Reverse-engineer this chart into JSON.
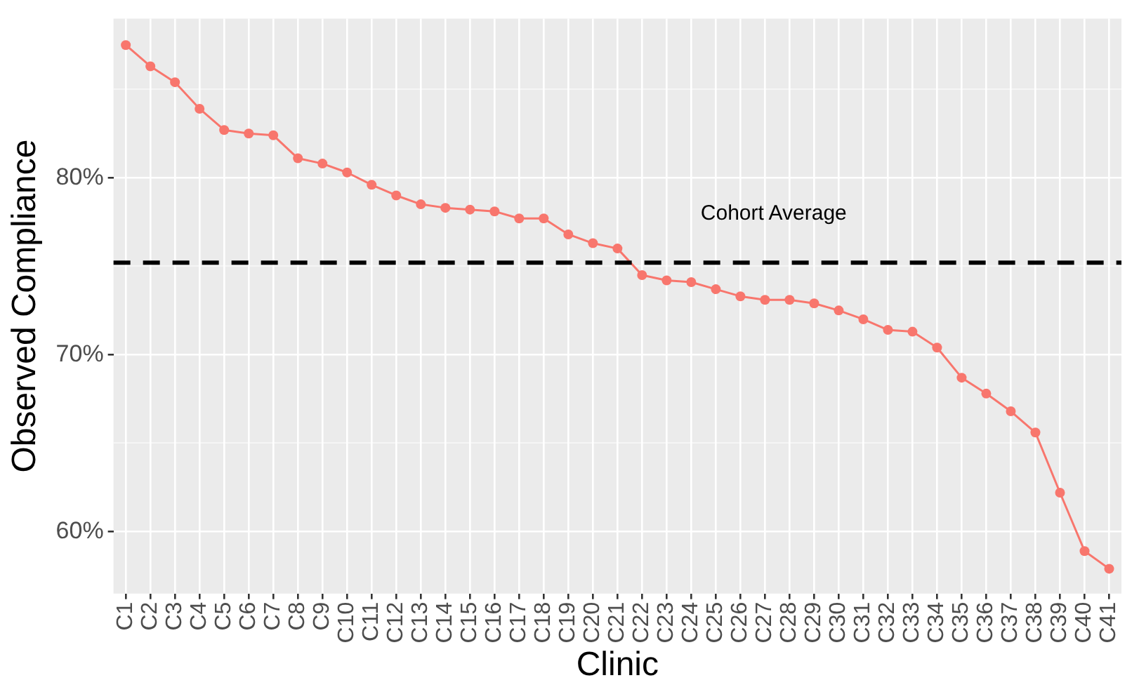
{
  "chart_data": {
    "type": "line",
    "xlabel": "Clinic",
    "ylabel": "Observed Compliance",
    "categories": [
      "C1",
      "C2",
      "C3",
      "C4",
      "C5",
      "C6",
      "C7",
      "C8",
      "C9",
      "C10",
      "C11",
      "C12",
      "C13",
      "C14",
      "C15",
      "C16",
      "C17",
      "C18",
      "C19",
      "C20",
      "C21",
      "C22",
      "C23",
      "C24",
      "C25",
      "C26",
      "C27",
      "C28",
      "C29",
      "C30",
      "C31",
      "C32",
      "C33",
      "C34",
      "C35",
      "C36",
      "C37",
      "C38",
      "C39",
      "C40",
      "C41"
    ],
    "series": [
      {
        "color": "#f8766d",
        "values": [
          87.5,
          86.3,
          85.4,
          83.9,
          82.7,
          82.5,
          82.4,
          81.1,
          80.8,
          80.3,
          79.6,
          79.0,
          78.5,
          78.3,
          78.2,
          78.1,
          77.7,
          77.7,
          76.8,
          76.3,
          76.0,
          74.5,
          74.2,
          74.1,
          73.7,
          73.3,
          73.1,
          73.1,
          72.9,
          72.5,
          72.0,
          71.4,
          71.3,
          70.4,
          68.7,
          67.8,
          66.8,
          65.6,
          62.2,
          58.9,
          57.9
        ]
      }
    ],
    "ylim": [
      56.5,
      89
    ],
    "yticks": [
      {
        "value": 60,
        "label": "60%"
      },
      {
        "value": 65,
        "label": null
      },
      {
        "value": 70,
        "label": "70%"
      },
      {
        "value": 75,
        "label": null
      },
      {
        "value": 80,
        "label": "80%"
      },
      {
        "value": 85,
        "label": null
      }
    ],
    "ref_lines": [
      {
        "axis": "y",
        "value": 75.2,
        "label": "Cohort Average",
        "color": "#000000",
        "line_style": "dashed"
      }
    ],
    "grid": true,
    "legend": false,
    "marker": "circle",
    "line_style": "solid"
  }
}
